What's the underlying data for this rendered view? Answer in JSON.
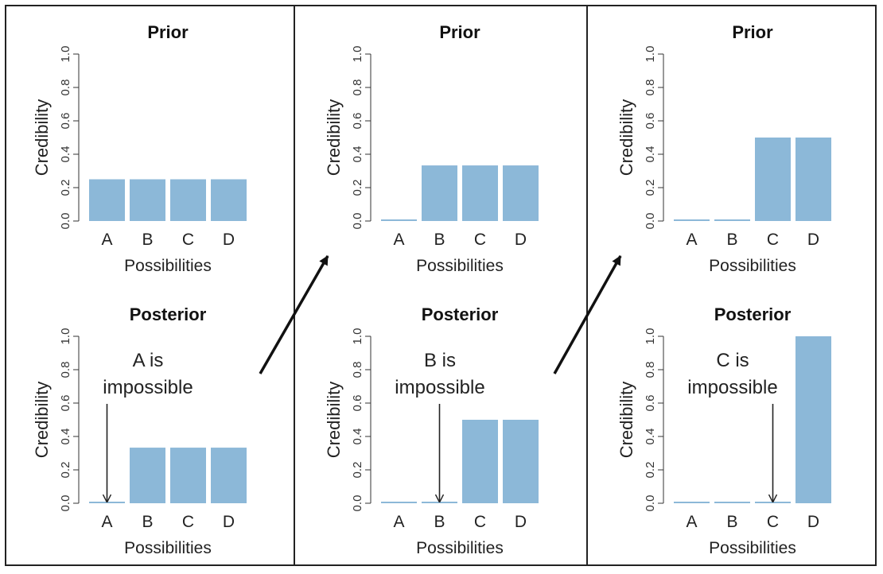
{
  "colors": {
    "bar": "#8cb8d8",
    "ink": "#222222"
  },
  "chart_data": [
    {
      "type": "bar",
      "title": "Prior",
      "xlabel": "Possibilities",
      "ylabel": "Credibility",
      "categories": [
        "A",
        "B",
        "C",
        "D"
      ],
      "values": [
        0.25,
        0.25,
        0.25,
        0.25
      ],
      "ylim": [
        0,
        1
      ],
      "yticks": [
        "0.0",
        "0.2",
        "0.4",
        "0.6",
        "0.8",
        "1.0"
      ],
      "annotation": null
    },
    {
      "type": "bar",
      "title": "Posterior",
      "xlabel": "Possibilities",
      "ylabel": "Credibility",
      "categories": [
        "A",
        "B",
        "C",
        "D"
      ],
      "values": [
        0,
        0.333,
        0.333,
        0.333
      ],
      "ylim": [
        0,
        1
      ],
      "yticks": [
        "0.0",
        "0.2",
        "0.4",
        "0.6",
        "0.8",
        "1.0"
      ],
      "annotation": {
        "lines": [
          "A is",
          "impossible"
        ],
        "target": "A"
      }
    },
    {
      "type": "bar",
      "title": "Prior",
      "xlabel": "Possibilities",
      "ylabel": "Credibility",
      "categories": [
        "A",
        "B",
        "C",
        "D"
      ],
      "values": [
        0,
        0.333,
        0.333,
        0.333
      ],
      "ylim": [
        0,
        1
      ],
      "yticks": [
        "0.0",
        "0.2",
        "0.4",
        "0.6",
        "0.8",
        "1.0"
      ],
      "annotation": null
    },
    {
      "type": "bar",
      "title": "Posterior",
      "xlabel": "Possibilities",
      "ylabel": "Credibility",
      "categories": [
        "A",
        "B",
        "C",
        "D"
      ],
      "values": [
        0,
        0,
        0.5,
        0.5
      ],
      "ylim": [
        0,
        1
      ],
      "yticks": [
        "0.0",
        "0.2",
        "0.4",
        "0.6",
        "0.8",
        "1.0"
      ],
      "annotation": {
        "lines": [
          "B is",
          "impossible"
        ],
        "target": "B"
      }
    },
    {
      "type": "bar",
      "title": "Prior",
      "xlabel": "Possibilities",
      "ylabel": "Credibility",
      "categories": [
        "A",
        "B",
        "C",
        "D"
      ],
      "values": [
        0,
        0,
        0.5,
        0.5
      ],
      "ylim": [
        0,
        1
      ],
      "yticks": [
        "0.0",
        "0.2",
        "0.4",
        "0.6",
        "0.8",
        "1.0"
      ],
      "annotation": null
    },
    {
      "type": "bar",
      "title": "Posterior",
      "xlabel": "Possibilities",
      "ylabel": "Credibility",
      "categories": [
        "A",
        "B",
        "C",
        "D"
      ],
      "values": [
        0,
        0,
        0,
        1.0
      ],
      "ylim": [
        0,
        1
      ],
      "yticks": [
        "0.0",
        "0.2",
        "0.4",
        "0.6",
        "0.8",
        "1.0"
      ],
      "annotation": {
        "lines": [
          "C is",
          "impossible"
        ],
        "target": "C"
      }
    }
  ]
}
